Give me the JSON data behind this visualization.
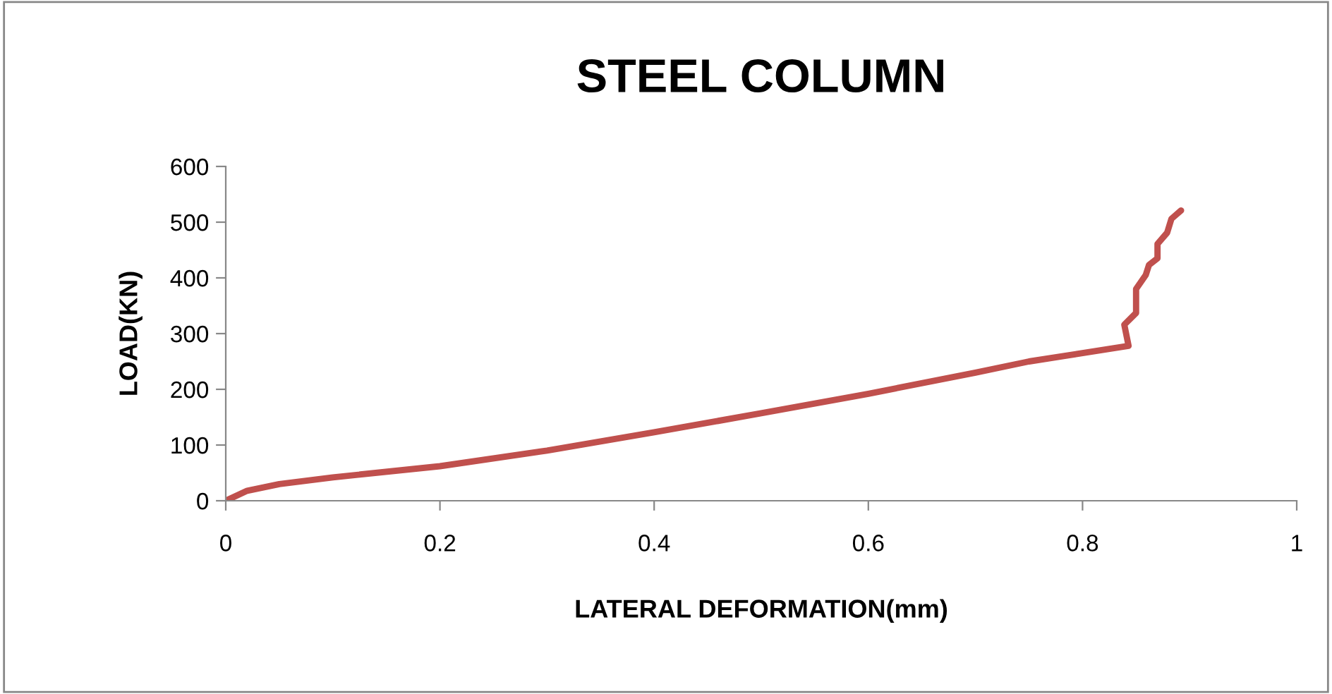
{
  "chart_data": {
    "type": "line",
    "title": "STEEL COLUMN",
    "xlabel": "LATERAL DEFORMATION(mm)",
    "ylabel": "LOAD(KN)",
    "x": [
      0,
      0.02,
      0.05,
      0.1,
      0.2,
      0.3,
      0.4,
      0.5,
      0.6,
      0.7,
      0.75,
      0.8,
      0.843,
      0.839,
      0.85,
      0.85,
      0.859,
      0.862,
      0.87,
      0.87,
      0.879,
      0.883,
      0.892
    ],
    "series": [
      {
        "color": "#c0504d",
        "values": [
          0,
          18,
          30,
          42,
          62,
          90,
          123,
          157,
          192,
          230,
          250,
          265,
          278,
          316,
          337,
          380,
          405,
          423,
          435,
          461,
          481,
          506,
          521
        ]
      }
    ],
    "xlim": [
      0,
      1
    ],
    "xticks": [
      0,
      0.2,
      0.4,
      0.6,
      0.8,
      1
    ],
    "ylim": [
      0,
      600
    ],
    "yticks": [
      0,
      100,
      200,
      300,
      400,
      500,
      600
    ],
    "grid": false,
    "legend": false,
    "marker": "none",
    "line_style": "solid"
  }
}
